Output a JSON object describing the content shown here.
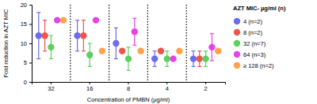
{
  "chart_data": {
    "type": "scatter",
    "x_label": "Concentration of PMBN (µg/ml)",
    "y_label": "Fold reduction in AZT MIC",
    "legend_title": "AZT MIC- µg/ml (n)",
    "legend": "right",
    "categories": [
      "32",
      "16",
      "8",
      "4",
      "2"
    ],
    "ylim": [
      0,
      20
    ],
    "yticks": [
      0,
      5,
      10,
      15,
      20
    ],
    "marker": "circle",
    "series": [
      {
        "name": "4 (n=2)",
        "color": "#6b6bf0",
        "values": [
          12,
          12,
          10,
          6,
          6
        ],
        "errors": [
          6,
          4,
          4,
          2,
          2
        ]
      },
      {
        "name": "8 (n=2)",
        "color": "#f0544c",
        "values": [
          12,
          12,
          8,
          8,
          6
        ],
        "errors": [
          4,
          4,
          null,
          null,
          2
        ]
      },
      {
        "name": "32 (n=7)",
        "color": "#5ccf5c",
        "values": [
          9,
          7,
          6,
          6,
          6
        ],
        "errors": [
          3,
          3,
          3,
          2,
          2
        ]
      },
      {
        "name": "64 (n=3)",
        "color": "#e444e4",
        "values": [
          16,
          16,
          13,
          6,
          9
        ],
        "errors": [
          null,
          null,
          3.5,
          null,
          3.5
        ]
      },
      {
        "name": "≥ 128 (n=2)",
        "color": "#ffa24c",
        "values": [
          16,
          8,
          8,
          8,
          8
        ],
        "errors": [
          null,
          null,
          null,
          null,
          null
        ]
      }
    ]
  }
}
